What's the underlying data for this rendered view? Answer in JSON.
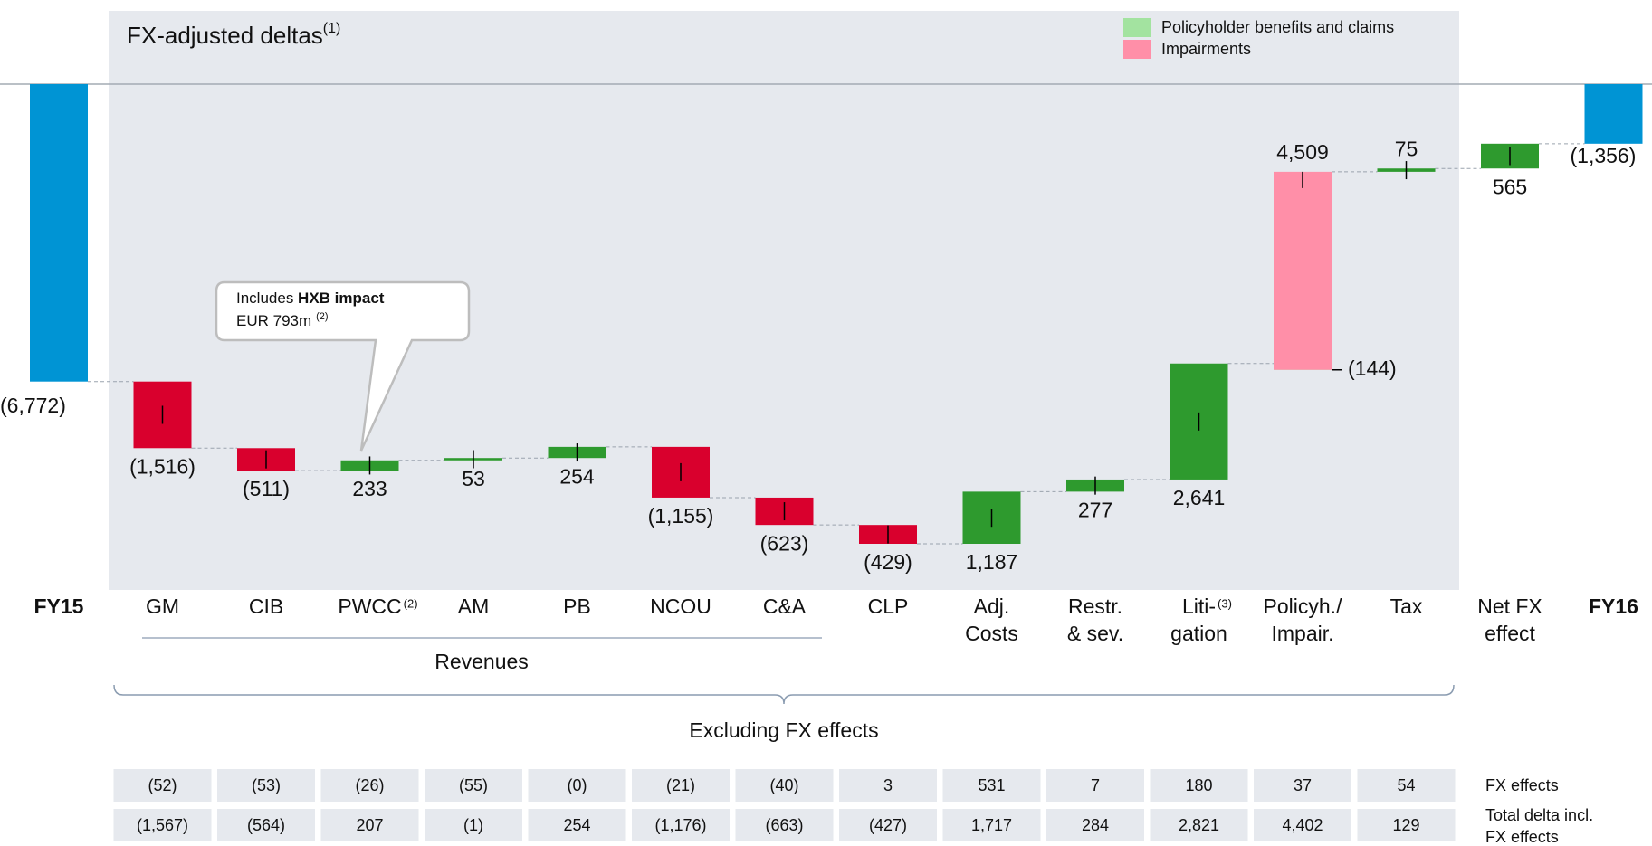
{
  "chart_data": {
    "type": "waterfall",
    "title": "FX-adjusted deltas",
    "title_note": "(1)",
    "categories": [
      "FY15",
      "GM",
      "CIB",
      "PWCC",
      "AM",
      "PB",
      "NCOU",
      "C&A",
      "CLP",
      "Adj.\nCosts",
      "Restr.\n& sev.",
      "Liti-\ngation",
      "Policyh./\nImpair.",
      "Tax",
      "Net FX\neffect",
      "FY16"
    ],
    "category_notes": [
      null,
      null,
      null,
      "(2)",
      null,
      null,
      null,
      null,
      null,
      null,
      null,
      "(3)",
      null,
      null,
      null,
      null
    ],
    "bar_kinds": [
      "total",
      "delta",
      "delta",
      "delta",
      "delta",
      "delta",
      "delta",
      "delta",
      "delta",
      "delta",
      "delta",
      "delta",
      "split",
      "delta",
      "delta",
      "total"
    ],
    "values": [
      -6772,
      -1516,
      -511,
      233,
      53,
      254,
      -1155,
      -623,
      -429,
      1187,
      277,
      2641,
      null,
      75,
      565,
      -1356
    ],
    "value_labels": [
      "(6,772)",
      "(1,516)",
      "(511)",
      "233",
      "53",
      "254",
      "(1,155)",
      "(623)",
      "(429)",
      "1,187",
      "277",
      "2,641",
      null,
      "75",
      "565",
      "(1,356)"
    ],
    "segments": [
      {
        "name": "Policyholder benefits and claims",
        "color": "#a3e3a0",
        "value": -144,
        "value_label": "(144)"
      },
      {
        "name": "Impairments",
        "color": "#ff8fa8",
        "value": 4509,
        "value_label": "4,509"
      }
    ],
    "colors": {
      "total": "#0094d4",
      "increase": "#2e9a2e",
      "decrease": "#d9002d"
    },
    "group_label": "Revenues",
    "bracket_label": "Excluding FX effects",
    "callout": {
      "text": "Includes ",
      "bold": "HXB impact",
      "line2": "EUR 793m",
      "note": "(2)"
    },
    "fx_table": {
      "row_labels": [
        "FX effects",
        "Total delta incl.\nFX effects"
      ],
      "rows": [
        [
          "(52)",
          "(53)",
          "(26)",
          "(55)",
          "(0)",
          "(21)",
          "(40)",
          "3",
          "531",
          "7",
          "180",
          "37",
          "54"
        ],
        [
          "(1,567)",
          "(564)",
          "207",
          "(1)",
          "254",
          "(1,176)",
          "(663)",
          "(427)",
          "1,717",
          "284",
          "2,821",
          "4,402",
          "129"
        ]
      ]
    }
  }
}
